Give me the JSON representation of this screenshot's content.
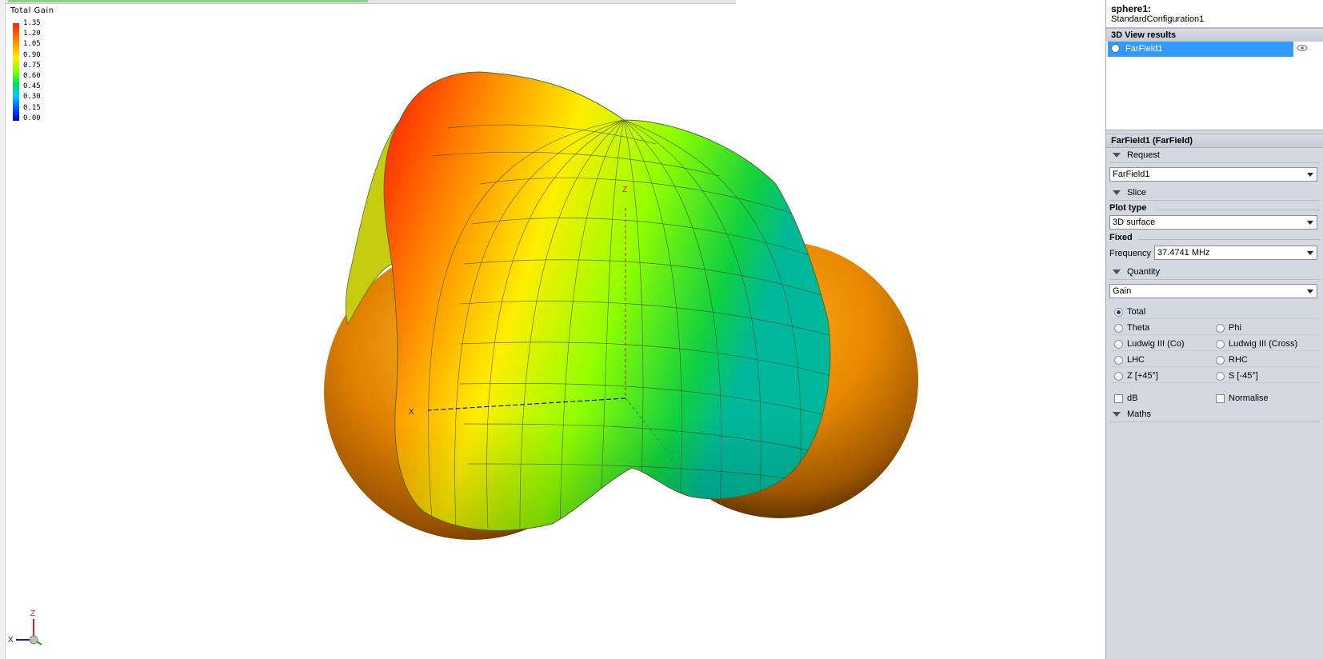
{
  "legend": {
    "title": "Total Gain",
    "ticks": [
      "1.35",
      "1.20",
      "1.05",
      "0.90",
      "0.75",
      "0.60",
      "0.45",
      "0.30",
      "0.15",
      "0.00"
    ]
  },
  "axes": {
    "x": "X",
    "y": "Y",
    "z": "Z"
  },
  "panel": {
    "object_name": "sphere1:",
    "configuration": "StandardConfiguration1",
    "results_header": "3D View results",
    "results": [
      {
        "label": "FarField1",
        "selected": true
      }
    ],
    "properties_header": "FarField1 (FarField)",
    "request": {
      "section": "Request",
      "value": "FarField1"
    },
    "slice": {
      "section": "Slice",
      "plot_type_label": "Plot type",
      "plot_type_value": "3D surface",
      "fixed_label": "Fixed",
      "frequency_label": "Frequency",
      "frequency_value": "37.4741 MHz"
    },
    "quantity": {
      "section": "Quantity",
      "value": "Gain",
      "options": {
        "total": "Total",
        "theta": "Theta",
        "phi": "Phi",
        "ludwig_co": "Ludwig III (Co)",
        "ludwig_cross": "Ludwig III (Cross)",
        "lhc": "LHC",
        "rhc": "RHC",
        "z45": "Z [+45°]",
        "s45": "S [-45°]"
      },
      "selected": "total",
      "db": "dB",
      "normalise": "Normalise"
    },
    "maths": {
      "section": "Maths"
    }
  },
  "colors": {
    "selection": "#3399ff",
    "panel_bg": "#d4d8e0"
  }
}
